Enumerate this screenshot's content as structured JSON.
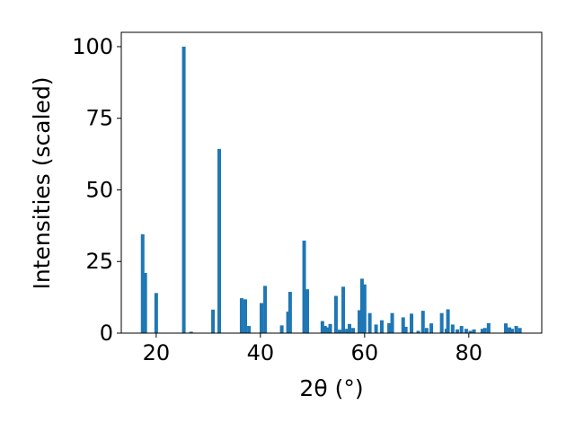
{
  "chart_data": {
    "type": "bar",
    "xlabel": "2θ (°)",
    "ylabel": "Intensities (scaled)",
    "x": [
      17.4,
      17.9,
      20.0,
      25.3,
      26.7,
      30.9,
      32.1,
      36.4,
      37.1,
      37.8,
      40.2,
      40.9,
      44.1,
      45.3,
      45.7,
      48.4,
      49.0,
      51.9,
      52.4,
      52.9,
      53.4,
      54.5,
      55.2,
      55.9,
      56.6,
      57.1,
      57.8,
      59.0,
      59.5,
      60.0,
      61.0,
      62.2,
      63.3,
      64.7,
      65.3,
      67.4,
      67.9,
      69.0,
      70.3,
      71.2,
      71.9,
      72.8,
      74.8,
      75.7,
      76.0,
      76.9,
      77.8,
      78.6,
      79.5,
      80.3,
      81.0,
      82.6,
      83.1,
      83.8,
      87.1,
      87.8,
      88.3,
      89.1,
      89.8
    ],
    "values": [
      34.5,
      21,
      14,
      100,
      0.5,
      8.2,
      64.3,
      12.2,
      11.8,
      2.5,
      10.5,
      16.5,
      2.7,
      7.5,
      14.4,
      32.3,
      15.3,
      4.2,
      2.5,
      2.0,
      3.2,
      13,
      1.2,
      16.2,
      1.5,
      3.2,
      1.8,
      8,
      19,
      17,
      7,
      3,
      4.5,
      3.5,
      7,
      5.5,
      2.2,
      6.8,
      0.8,
      7.8,
      1.8,
      3.4,
      7,
      1.5,
      8.3,
      3,
      1.3,
      2.5,
      1.5,
      0.8,
      1.3,
      1.5,
      1.8,
      3.5,
      3.4,
      2,
      1.5,
      2.5,
      1.8
    ],
    "color": "#1f77b4",
    "xlim": [
      13.3,
      94.0
    ],
    "xticks": [
      20,
      40,
      60,
      80
    ],
    "ylim": [
      0,
      105
    ],
    "yticks": [
      0,
      25,
      50,
      75,
      100
    ]
  }
}
